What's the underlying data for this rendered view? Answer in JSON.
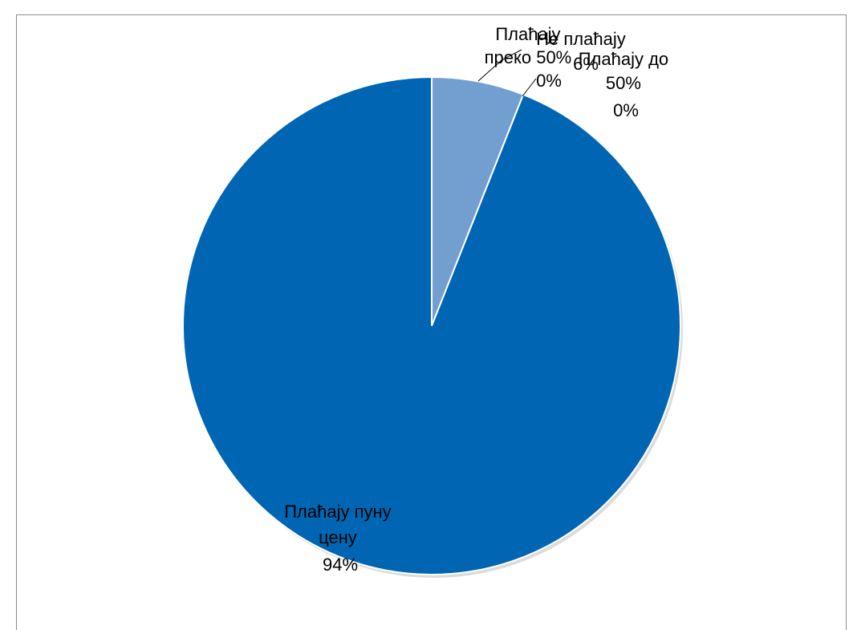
{
  "chart_data": {
    "type": "pie",
    "title": "",
    "start_angle_deg": 0,
    "direction": "clockwise",
    "colors": {
      "pune_cene": "#0066b3",
      "ne_placaju": "#729fcf",
      "border": "#ffffff",
      "leader": "#000000"
    },
    "slices": [
      {
        "key": "ne_placaju",
        "label_lines": [
          "Не плаћају",
          "6%"
        ],
        "value": 6
      },
      {
        "key": "do_50",
        "label_lines": [
          "Плаћају до",
          "50%",
          "0%"
        ],
        "value": 0
      },
      {
        "key": "preko_50",
        "label_lines": [
          "Плаћају",
          "преко 50%",
          "0%"
        ],
        "value": 0
      },
      {
        "key": "pune_cene",
        "label_lines": [
          "Плаћају пуну",
          "цену",
          "94%"
        ],
        "value": 94
      }
    ]
  }
}
